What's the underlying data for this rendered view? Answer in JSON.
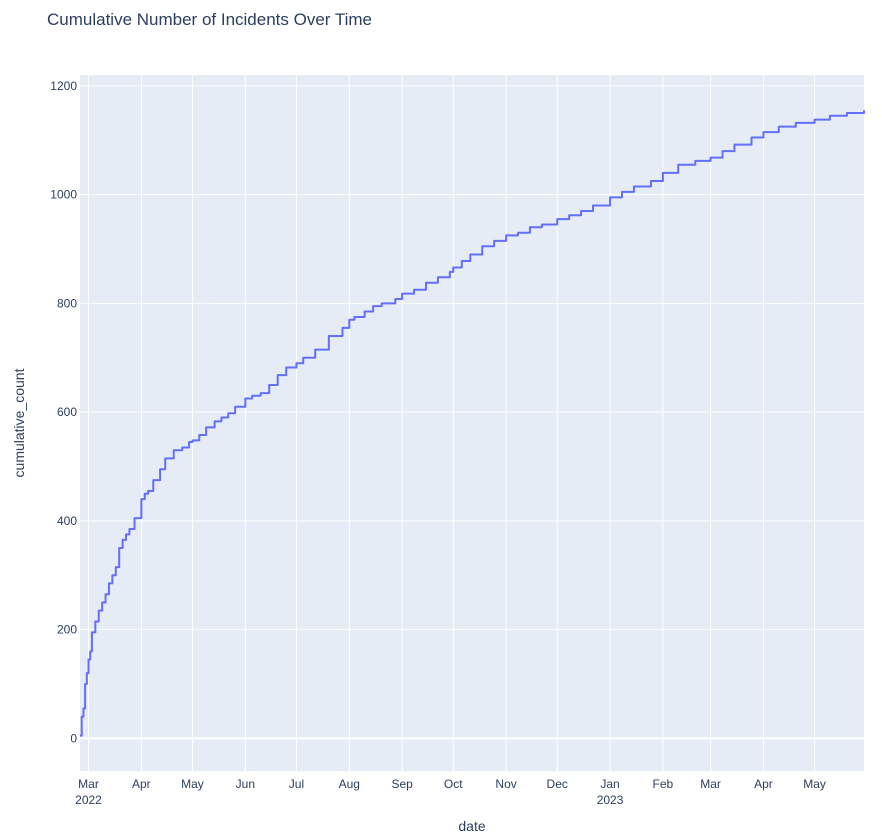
{
  "chart_data": {
    "type": "line",
    "title": "Cumulative Number of Incidents Over Time",
    "xlabel": "date",
    "ylabel": "cumulative_count",
    "ylim": [
      -60,
      1220
    ],
    "xlim": [
      "2022-02-24",
      "2023-05-30"
    ],
    "grid": true,
    "y_ticks": [
      0,
      200,
      400,
      600,
      800,
      1000,
      1200
    ],
    "x_ticks": [
      {
        "date": "2022-03-01",
        "label": "Mar",
        "sub": "2022"
      },
      {
        "date": "2022-04-01",
        "label": "Apr",
        "sub": ""
      },
      {
        "date": "2022-05-01",
        "label": "May",
        "sub": ""
      },
      {
        "date": "2022-06-01",
        "label": "Jun",
        "sub": ""
      },
      {
        "date": "2022-07-01",
        "label": "Jul",
        "sub": ""
      },
      {
        "date": "2022-08-01",
        "label": "Aug",
        "sub": ""
      },
      {
        "date": "2022-09-01",
        "label": "Sep",
        "sub": ""
      },
      {
        "date": "2022-10-01",
        "label": "Oct",
        "sub": ""
      },
      {
        "date": "2022-11-01",
        "label": "Nov",
        "sub": ""
      },
      {
        "date": "2022-12-01",
        "label": "Dec",
        "sub": ""
      },
      {
        "date": "2023-01-01",
        "label": "Jan",
        "sub": "2023"
      },
      {
        "date": "2023-02-01",
        "label": "Feb",
        "sub": ""
      },
      {
        "date": "2023-03-01",
        "label": "Mar",
        "sub": ""
      },
      {
        "date": "2023-04-01",
        "label": "Apr",
        "sub": ""
      },
      {
        "date": "2023-05-01",
        "label": "May",
        "sub": ""
      }
    ],
    "series": [
      {
        "color": "#636efa",
        "x": [
          "2022-02-24",
          "2022-02-25",
          "2022-02-26",
          "2022-02-27",
          "2022-02-28",
          "2022-03-01",
          "2022-03-02",
          "2022-03-03",
          "2022-03-05",
          "2022-03-07",
          "2022-03-09",
          "2022-03-11",
          "2022-03-13",
          "2022-03-15",
          "2022-03-17",
          "2022-03-19",
          "2022-03-21",
          "2022-03-23",
          "2022-03-25",
          "2022-03-28",
          "2022-04-01",
          "2022-04-03",
          "2022-04-05",
          "2022-04-08",
          "2022-04-12",
          "2022-04-15",
          "2022-04-20",
          "2022-04-25",
          "2022-04-29",
          "2022-05-01",
          "2022-05-05",
          "2022-05-09",
          "2022-05-14",
          "2022-05-18",
          "2022-05-22",
          "2022-05-26",
          "2022-06-01",
          "2022-06-05",
          "2022-06-10",
          "2022-06-15",
          "2022-06-20",
          "2022-06-25",
          "2022-07-01",
          "2022-07-05",
          "2022-07-12",
          "2022-07-20",
          "2022-07-28",
          "2022-08-01",
          "2022-08-04",
          "2022-08-10",
          "2022-08-15",
          "2022-08-20",
          "2022-08-28",
          "2022-09-01",
          "2022-09-08",
          "2022-09-15",
          "2022-09-22",
          "2022-09-29",
          "2022-10-01",
          "2022-10-06",
          "2022-10-11",
          "2022-10-18",
          "2022-10-25",
          "2022-11-01",
          "2022-11-08",
          "2022-11-15",
          "2022-11-22",
          "2022-12-01",
          "2022-12-08",
          "2022-12-15",
          "2022-12-22",
          "2023-01-01",
          "2023-01-08",
          "2023-01-15",
          "2023-01-25",
          "2023-02-01",
          "2023-02-10",
          "2023-02-20",
          "2023-03-01",
          "2023-03-08",
          "2023-03-15",
          "2023-03-25",
          "2023-04-01",
          "2023-04-10",
          "2023-04-20",
          "2023-05-01",
          "2023-05-10",
          "2023-05-20",
          "2023-05-30"
        ],
        "y": [
          5,
          40,
          55,
          100,
          120,
          145,
          160,
          195,
          215,
          235,
          250,
          265,
          285,
          300,
          315,
          350,
          365,
          375,
          385,
          405,
          440,
          450,
          455,
          475,
          495,
          515,
          530,
          535,
          545,
          548,
          558,
          572,
          583,
          590,
          598,
          610,
          625,
          630,
          635,
          650,
          668,
          682,
          690,
          700,
          715,
          740,
          755,
          770,
          775,
          785,
          795,
          800,
          808,
          818,
          825,
          838,
          848,
          858,
          866,
          878,
          890,
          905,
          915,
          925,
          930,
          940,
          945,
          955,
          962,
          970,
          980,
          995,
          1005,
          1015,
          1025,
          1040,
          1055,
          1062,
          1068,
          1080,
          1092,
          1105,
          1115,
          1125,
          1132,
          1138,
          1145,
          1150,
          1155
        ]
      }
    ]
  }
}
